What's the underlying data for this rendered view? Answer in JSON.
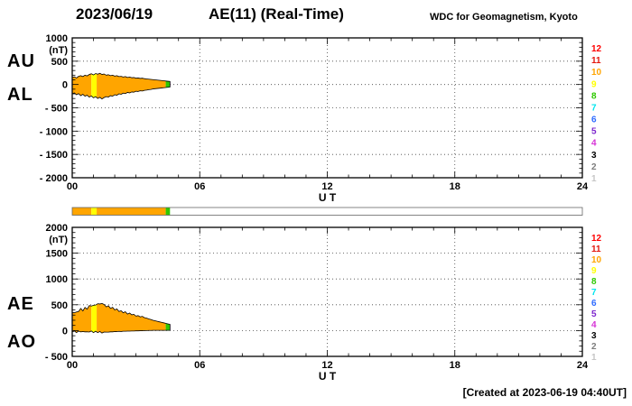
{
  "header": {
    "date": "2023/06/19",
    "title": "AE(11) (Real-Time)",
    "source": "WDC for Geomagnetism, Kyoto"
  },
  "footer": {
    "created": "[Created at 2023-06-19 04:40UT]"
  },
  "legend_station_counts": [
    {
      "label": "12",
      "color": "#ff0000"
    },
    {
      "label": "11",
      "color": "#e3170d"
    },
    {
      "label": "10",
      "color": "#ffa500"
    },
    {
      "label": "9",
      "color": "#ffff00"
    },
    {
      "label": "8",
      "color": "#2ec800"
    },
    {
      "label": "7",
      "color": "#00e5ee"
    },
    {
      "label": "6",
      "color": "#2e6bff"
    },
    {
      "label": "5",
      "color": "#7d26cd"
    },
    {
      "label": "4",
      "color": "#d633d6"
    },
    {
      "label": "3",
      "color": "#000000"
    },
    {
      "label": "2",
      "color": "#7d7d7d"
    },
    {
      "label": "1",
      "color": "#c6c6c6"
    }
  ],
  "chart_data": [
    {
      "type": "area",
      "title": "AU / AL (Real-Time)",
      "left_labels": [
        "AU",
        "AL"
      ],
      "ylabel": "(nT)",
      "xlabel": "U T",
      "ylim": [
        -2000,
        1000
      ],
      "yticks": [
        1000,
        500,
        0,
        -500,
        -1000,
        -1500,
        -2000
      ],
      "ytick_labels": [
        "1000",
        "500",
        "0",
        "- 500",
        "- 1000",
        "- 1500",
        "- 2000"
      ],
      "xlim": [
        0,
        24
      ],
      "xticks": [
        0,
        6,
        12,
        18,
        24
      ],
      "xtick_labels": [
        "00",
        "06",
        "12",
        "18",
        "24"
      ],
      "x": [
        0,
        0.1,
        0.2,
        0.3,
        0.4,
        0.5,
        0.6,
        0.7,
        0.8,
        0.9,
        1,
        1.1,
        1.2,
        1.3,
        1.4,
        1.5,
        1.6,
        1.7,
        1.8,
        1.9,
        2,
        2.1,
        2.2,
        2.3,
        2.4,
        2.5,
        2.6,
        2.7,
        2.8,
        2.9,
        3,
        3.1,
        3.2,
        3.3,
        3.4,
        3.5,
        3.6,
        3.7,
        3.8,
        3.9,
        4,
        4.1,
        4.2,
        4.3,
        4.4,
        4.5,
        4.6
      ],
      "series": [
        {
          "name": "AU",
          "values": [
            150,
            165,
            140,
            175,
            190,
            170,
            200,
            185,
            215,
            230,
            205,
            235,
            220,
            240,
            215,
            225,
            200,
            210,
            190,
            200,
            180,
            190,
            170,
            175,
            160,
            170,
            150,
            160,
            145,
            150,
            135,
            140,
            130,
            135,
            125,
            120,
            115,
            110,
            105,
            100,
            95,
            90,
            85,
            80,
            75,
            70,
            65
          ]
        },
        {
          "name": "AL",
          "values": [
            -200,
            -180,
            -220,
            -195,
            -240,
            -210,
            -250,
            -230,
            -270,
            -245,
            -285,
            -260,
            -300,
            -275,
            -310,
            -280,
            -260,
            -270,
            -240,
            -250,
            -220,
            -230,
            -200,
            -210,
            -185,
            -195,
            -170,
            -180,
            -160,
            -165,
            -145,
            -150,
            -135,
            -140,
            -125,
            -120,
            -110,
            -105,
            -95,
            -90,
            -85,
            -80,
            -75,
            -70,
            -65,
            -60,
            -55
          ]
        }
      ],
      "fill_bands": [
        {
          "t0": 0,
          "t1": 0.9,
          "color": "#ffa500"
        },
        {
          "t0": 0.9,
          "t1": 1.15,
          "color": "#ffff00"
        },
        {
          "t0": 1.15,
          "t1": 4.4,
          "color": "#ffa500"
        },
        {
          "t0": 4.4,
          "t1": 4.6,
          "color": "#2ec800"
        }
      ]
    },
    {
      "type": "area",
      "title": "AE / AO (Real-Time)",
      "left_labels": [
        "AE",
        "AO"
      ],
      "ylabel": "(nT)",
      "xlabel": "U T",
      "ylim": [
        -500,
        2000
      ],
      "yticks": [
        2000,
        1500,
        1000,
        500,
        0,
        -500
      ],
      "ytick_labels": [
        "2000",
        "1500",
        "1000",
        "500",
        "0",
        "- 500"
      ],
      "xlim": [
        0,
        24
      ],
      "xticks": [
        0,
        6,
        12,
        18,
        24
      ],
      "xtick_labels": [
        "00",
        "06",
        "12",
        "18",
        "24"
      ],
      "x": [
        0,
        0.1,
        0.2,
        0.3,
        0.4,
        0.5,
        0.6,
        0.7,
        0.8,
        0.9,
        1,
        1.1,
        1.2,
        1.3,
        1.4,
        1.5,
        1.6,
        1.7,
        1.8,
        1.9,
        2,
        2.1,
        2.2,
        2.3,
        2.4,
        2.5,
        2.6,
        2.7,
        2.8,
        2.9,
        3,
        3.1,
        3.2,
        3.3,
        3.4,
        3.5,
        3.6,
        3.7,
        3.8,
        3.9,
        4,
        4.1,
        4.2,
        4.3,
        4.4,
        4.5,
        4.6
      ],
      "series": [
        {
          "name": "AE",
          "values": [
            350,
            345,
            360,
            370,
            430,
            380,
            450,
            415,
            485,
            475,
            490,
            495,
            520,
            515,
            525,
            505,
            460,
            480,
            430,
            450,
            400,
            420,
            370,
            385,
            345,
            365,
            320,
            340,
            305,
            315,
            280,
            290,
            265,
            275,
            250,
            240,
            225,
            215,
            200,
            190,
            180,
            170,
            160,
            150,
            140,
            130,
            120
          ]
        },
        {
          "name": "AO",
          "values": [
            -25,
            -8,
            -40,
            -10,
            -25,
            -20,
            -25,
            -23,
            -28,
            -8,
            -40,
            -13,
            -40,
            -18,
            -48,
            -28,
            -30,
            -30,
            -25,
            -25,
            -20,
            -20,
            -15,
            -18,
            -13,
            -13,
            -10,
            -10,
            -8,
            -8,
            -5,
            -5,
            -3,
            -3,
            0,
            0,
            3,
            3,
            5,
            5,
            5,
            5,
            5,
            5,
            5,
            5,
            5
          ]
        }
      ],
      "fill_bands": [
        {
          "t0": 0,
          "t1": 0.9,
          "color": "#ffa500"
        },
        {
          "t0": 0.9,
          "t1": 1.15,
          "color": "#ffff00"
        },
        {
          "t0": 1.15,
          "t1": 4.4,
          "color": "#ffa500"
        },
        {
          "t0": 4.4,
          "t1": 4.6,
          "color": "#2ec800"
        }
      ]
    }
  ],
  "strip": {
    "xlim": [
      0,
      24
    ],
    "bands": [
      {
        "t0": 0,
        "t1": 0.9,
        "color": "#ffa500"
      },
      {
        "t0": 0.9,
        "t1": 1.15,
        "color": "#ffff00"
      },
      {
        "t0": 1.15,
        "t1": 4.4,
        "color": "#ffa500"
      },
      {
        "t0": 4.4,
        "t1": 4.6,
        "color": "#2ec800"
      }
    ]
  }
}
